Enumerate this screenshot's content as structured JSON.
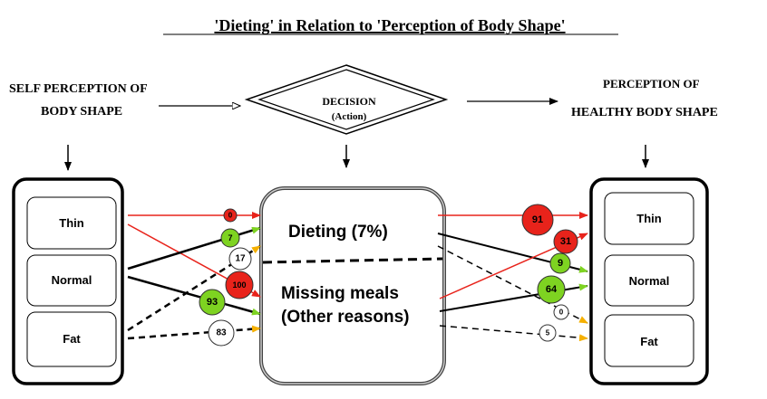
{
  "title": "'Dieting' in Relation to 'Perception of Body Shape'",
  "left_header": {
    "line1": "SELF PERCEPTION OF",
    "line2": "BODY SHAPE"
  },
  "decision": {
    "line1": "DECISION",
    "line2": "(Action)"
  },
  "right_header": {
    "line1": "PERCEPTION  OF",
    "line2": "HEALTHY BODY SHAPE"
  },
  "left_box": [
    "Thin",
    "Normal",
    "Fat"
  ],
  "center_box": {
    "dieting": "Dieting (7%)",
    "missing1": "Missing meals",
    "missing2": "(Other reasons)"
  },
  "right_box": [
    "Thin",
    "Normal",
    "Fat"
  ],
  "left_flows": [
    {
      "from": "Thin",
      "to": "Dieting",
      "value": "0",
      "color": "#e8231b"
    },
    {
      "from": "Thin",
      "to": "Missing meals",
      "value": "100",
      "color": "#e8231b"
    },
    {
      "from": "Normal",
      "to": "Dieting",
      "value": "7",
      "color": "#7ed321"
    },
    {
      "from": "Normal",
      "to": "Missing meals",
      "value": "93",
      "color": "#7ed321"
    },
    {
      "from": "Fat",
      "to": "Dieting",
      "value": "17",
      "color": "#ffffff"
    },
    {
      "from": "Fat",
      "to": "Missing meals",
      "value": "83",
      "color": "#ffffff"
    }
  ],
  "right_flows": [
    {
      "from": "Dieting",
      "to": "Thin",
      "value": "91",
      "color": "#e8231b"
    },
    {
      "from": "Dieting",
      "to": "Normal",
      "value": "9",
      "color": "#7ed321"
    },
    {
      "from": "Dieting",
      "to": "Fat",
      "value": "0",
      "color": "#ffffff"
    },
    {
      "from": "Missing meals",
      "to": "Thin",
      "value": "31",
      "color": "#e8231b"
    },
    {
      "from": "Missing meals",
      "to": "Normal",
      "value": "64",
      "color": "#7ed321"
    },
    {
      "from": "Missing meals",
      "to": "Fat",
      "value": "5",
      "color": "#ffffff"
    }
  ]
}
